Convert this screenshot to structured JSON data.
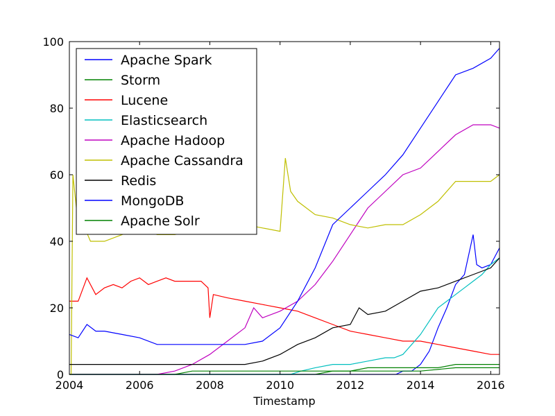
{
  "chart_data": {
    "type": "line",
    "title": "",
    "xlabel": "Timestamp",
    "ylabel": "",
    "xlim": [
      2004.0,
      2016.25
    ],
    "ylim": [
      0,
      100
    ],
    "x_ticks": [
      2004,
      2006,
      2008,
      2010,
      2012,
      2014,
      2016
    ],
    "x_tick_labels": [
      "2004",
      "2006",
      "2008",
      "2010",
      "2012",
      "2014",
      "2016"
    ],
    "y_ticks": [
      0,
      20,
      40,
      60,
      80,
      100
    ],
    "y_tick_labels": [
      "0",
      "20",
      "40",
      "60",
      "80",
      "100"
    ],
    "grid": false,
    "legend_position": "top-left",
    "series": [
      {
        "name": "Apache Spark",
        "color": "#0000ff",
        "points": [
          [
            2004,
            0
          ],
          [
            2013.3,
            0
          ],
          [
            2013.5,
            1
          ],
          [
            2013.75,
            1
          ],
          [
            2014,
            3
          ],
          [
            2014.25,
            7
          ],
          [
            2014.5,
            14
          ],
          [
            2014.75,
            20
          ],
          [
            2015,
            27
          ],
          [
            2015.25,
            30
          ],
          [
            2015.5,
            42
          ],
          [
            2015.6,
            33
          ],
          [
            2015.75,
            32
          ],
          [
            2016,
            33
          ],
          [
            2016.25,
            38
          ]
        ]
      },
      {
        "name": "Storm",
        "color": "#008000",
        "points": [
          [
            2004,
            0
          ],
          [
            2011,
            0
          ],
          [
            2011.5,
            1
          ],
          [
            2012,
            1
          ],
          [
            2012.5,
            2
          ],
          [
            2013,
            2
          ],
          [
            2013.5,
            2
          ],
          [
            2014,
            2
          ],
          [
            2014.5,
            2
          ],
          [
            2015,
            3
          ],
          [
            2015.5,
            3
          ],
          [
            2016,
            3
          ],
          [
            2016.25,
            3
          ]
        ]
      },
      {
        "name": "Lucene",
        "color": "#ff0000",
        "points": [
          [
            2004,
            22
          ],
          [
            2004.25,
            22
          ],
          [
            2004.5,
            29
          ],
          [
            2004.75,
            24
          ],
          [
            2005,
            26
          ],
          [
            2005.25,
            27
          ],
          [
            2005.5,
            26
          ],
          [
            2005.75,
            28
          ],
          [
            2006,
            29
          ],
          [
            2006.25,
            27
          ],
          [
            2006.5,
            28
          ],
          [
            2006.75,
            29
          ],
          [
            2007,
            28
          ],
          [
            2007.5,
            28
          ],
          [
            2007.75,
            28
          ],
          [
            2007.95,
            26
          ],
          [
            2008,
            17
          ],
          [
            2008.1,
            24
          ],
          [
            2008.5,
            23
          ],
          [
            2009,
            22
          ],
          [
            2009.5,
            21
          ],
          [
            2010,
            20
          ],
          [
            2010.5,
            19
          ],
          [
            2011,
            17
          ],
          [
            2011.5,
            15
          ],
          [
            2012,
            13
          ],
          [
            2012.5,
            12
          ],
          [
            2013,
            11
          ],
          [
            2013.5,
            10
          ],
          [
            2014,
            10
          ],
          [
            2014.5,
            9
          ],
          [
            2015,
            8
          ],
          [
            2015.5,
            7
          ],
          [
            2016,
            6
          ],
          [
            2016.25,
            6
          ]
        ]
      },
      {
        "name": "Elasticsearch",
        "color": "#00bfbf",
        "points": [
          [
            2004,
            0
          ],
          [
            2010.3,
            0
          ],
          [
            2010.6,
            1
          ],
          [
            2011,
            2
          ],
          [
            2011.5,
            3
          ],
          [
            2012,
            3
          ],
          [
            2012.5,
            4
          ],
          [
            2013,
            5
          ],
          [
            2013.25,
            5
          ],
          [
            2013.5,
            6
          ],
          [
            2013.75,
            9
          ],
          [
            2014,
            12
          ],
          [
            2014.25,
            16
          ],
          [
            2014.5,
            20
          ],
          [
            2014.75,
            22
          ],
          [
            2015,
            24
          ],
          [
            2015.25,
            26
          ],
          [
            2015.5,
            28
          ],
          [
            2015.75,
            30
          ],
          [
            2016,
            33
          ],
          [
            2016.25,
            35
          ]
        ]
      },
      {
        "name": "Apache Hadoop",
        "color": "#bf00bf",
        "points": [
          [
            2004,
            0
          ],
          [
            2006.5,
            0
          ],
          [
            2007,
            1
          ],
          [
            2007.5,
            3
          ],
          [
            2008,
            6
          ],
          [
            2008.5,
            10
          ],
          [
            2009,
            14
          ],
          [
            2009.25,
            20
          ],
          [
            2009.5,
            17
          ],
          [
            2010,
            19
          ],
          [
            2010.5,
            22
          ],
          [
            2011,
            27
          ],
          [
            2011.5,
            34
          ],
          [
            2012,
            42
          ],
          [
            2012.5,
            50
          ],
          [
            2013,
            55
          ],
          [
            2013.5,
            60
          ],
          [
            2014,
            62
          ],
          [
            2014.5,
            67
          ],
          [
            2015,
            72
          ],
          [
            2015.5,
            75
          ],
          [
            2016,
            75
          ],
          [
            2016.25,
            74
          ]
        ]
      },
      {
        "name": "Apache Cassandra",
        "color": "#bfbf00",
        "points": [
          [
            2004,
            0
          ],
          [
            2004.05,
            0
          ],
          [
            2004.1,
            60
          ],
          [
            2004.2,
            50
          ],
          [
            2004.4,
            45
          ],
          [
            2004.6,
            40
          ],
          [
            2005,
            40
          ],
          [
            2005.5,
            42
          ],
          [
            2006,
            44
          ],
          [
            2006.5,
            42
          ],
          [
            2007,
            42
          ],
          [
            2007.5,
            43
          ],
          [
            2008,
            43
          ],
          [
            2008.5,
            45
          ],
          [
            2009,
            45
          ],
          [
            2009.5,
            44
          ],
          [
            2010,
            43
          ],
          [
            2010.15,
            65
          ],
          [
            2010.3,
            55
          ],
          [
            2010.5,
            52
          ],
          [
            2011,
            48
          ],
          [
            2011.5,
            47
          ],
          [
            2012,
            45
          ],
          [
            2012.5,
            44
          ],
          [
            2013,
            45
          ],
          [
            2013.5,
            45
          ],
          [
            2014,
            48
          ],
          [
            2014.5,
            52
          ],
          [
            2015,
            58
          ],
          [
            2015.5,
            58
          ],
          [
            2016,
            58
          ],
          [
            2016.25,
            60
          ]
        ]
      },
      {
        "name": "Redis",
        "color": "#000000",
        "points": [
          [
            2004,
            3
          ],
          [
            2005,
            3
          ],
          [
            2006,
            3
          ],
          [
            2007,
            3
          ],
          [
            2008,
            3
          ],
          [
            2009,
            3
          ],
          [
            2009.5,
            4
          ],
          [
            2010,
            6
          ],
          [
            2010.5,
            9
          ],
          [
            2011,
            11
          ],
          [
            2011.5,
            14
          ],
          [
            2012,
            15
          ],
          [
            2012.25,
            20
          ],
          [
            2012.5,
            18
          ],
          [
            2013,
            19
          ],
          [
            2013.5,
            22
          ],
          [
            2014,
            25
          ],
          [
            2014.5,
            26
          ],
          [
            2015,
            28
          ],
          [
            2015.5,
            30
          ],
          [
            2016,
            32
          ],
          [
            2016.25,
            35
          ]
        ]
      },
      {
        "name": "MongoDB",
        "color": "#0000ff",
        "points": [
          [
            2004,
            12
          ],
          [
            2004.25,
            11
          ],
          [
            2004.5,
            15
          ],
          [
            2004.75,
            13
          ],
          [
            2005,
            13
          ],
          [
            2005.5,
            12
          ],
          [
            2006,
            11
          ],
          [
            2006.5,
            9
          ],
          [
            2007,
            9
          ],
          [
            2007.5,
            9
          ],
          [
            2008,
            9
          ],
          [
            2008.5,
            9
          ],
          [
            2009,
            9
          ],
          [
            2009.5,
            10
          ],
          [
            2010,
            14
          ],
          [
            2010.5,
            22
          ],
          [
            2011,
            32
          ],
          [
            2011.5,
            45
          ],
          [
            2012,
            50
          ],
          [
            2012.5,
            55
          ],
          [
            2013,
            60
          ],
          [
            2013.5,
            66
          ],
          [
            2014,
            74
          ],
          [
            2014.5,
            82
          ],
          [
            2015,
            90
          ],
          [
            2015.5,
            92
          ],
          [
            2016,
            95
          ],
          [
            2016.25,
            98
          ]
        ]
      },
      {
        "name": "Apache Solr",
        "color": "#008000",
        "points": [
          [
            2004,
            0
          ],
          [
            2007,
            0
          ],
          [
            2007.5,
            1
          ],
          [
            2008,
            1
          ],
          [
            2009,
            1
          ],
          [
            2010,
            1
          ],
          [
            2011,
            1
          ],
          [
            2012,
            1
          ],
          [
            2013,
            1
          ],
          [
            2014,
            1
          ],
          [
            2015,
            2
          ],
          [
            2016,
            2
          ],
          [
            2016.25,
            2
          ]
        ]
      }
    ]
  }
}
